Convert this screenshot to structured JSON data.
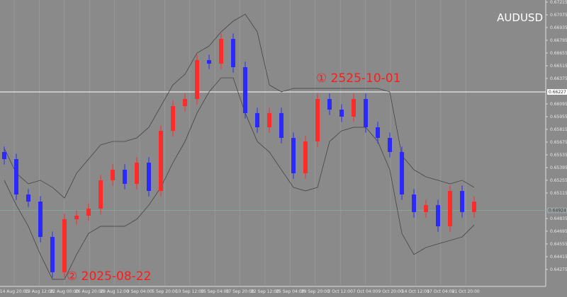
{
  "chart_data": {
    "type": "candlestick",
    "symbol": "AUDUSD",
    "ylim": [
      0.64088,
      0.67238
    ],
    "yticks": [
      0.67215,
      0.67075,
      0.66935,
      0.66795,
      0.66655,
      0.66515,
      0.66375,
      0.66095,
      0.65955,
      0.65815,
      0.65675,
      0.65535,
      0.65395,
      0.65255,
      0.65115,
      0.64835,
      0.64695,
      0.64555,
      0.64415,
      0.64275
    ],
    "x_labels": [
      "14 Aug 20:00",
      "19 Aug 12:00",
      "22 Aug 00:00",
      "26 Aug 20:00",
      "29 Aug 12:00",
      "3 Sep 04:00",
      "5 Sep 20:00",
      "10 Sep 12:00",
      "15 Sep 04:00",
      "17 Sep 20:00",
      "22 Sep 12:00",
      "25 Sep 04:00",
      "29 Sep 20:00",
      "2 Oct 12:00",
      "7 Oct 04:00",
      "9 Oct 20:00",
      "14 Oct 12:00",
      "17 Oct 04:00",
      "21 Oct 20:00"
    ],
    "up_color": "#ff2a2a",
    "down_color": "#2a2aff",
    "open": [
      0.65566,
      0.65488,
      0.65099,
      0.65021,
      0.64632,
      0.64244,
      0.64827,
      0.64866,
      0.64943,
      0.65255,
      0.65371,
      0.65216,
      0.65449,
      0.65138,
      0.65799,
      0.66071,
      0.66149,
      0.66577,
      0.66538,
      0.6681,
      0.66499,
      0.65994,
      0.65838,
      0.65994,
      0.65721,
      0.65332,
      0.65682,
      0.66149,
      0.66032,
      0.65955,
      0.66149,
      0.65838,
      0.65721,
      0.65566,
      0.65099,
      0.64905,
      0.64982,
      0.64749,
      0.65138,
      0.64905
    ],
    "high": [
      0.65626,
      0.65548,
      0.65159,
      0.65081,
      0.64692,
      0.64887,
      0.64926,
      0.65003,
      0.65315,
      0.65431,
      0.65431,
      0.65509,
      0.65509,
      0.65859,
      0.66131,
      0.66209,
      0.66637,
      0.66637,
      0.6687,
      0.6687,
      0.66559,
      0.66054,
      0.66054,
      0.66054,
      0.65781,
      0.65742,
      0.66209,
      0.66209,
      0.66092,
      0.66209,
      0.66209,
      0.65898,
      0.65781,
      0.65626,
      0.65159,
      0.65042,
      0.65042,
      0.65198,
      0.65198,
      0.65081
    ],
    "low": [
      0.65428,
      0.65039,
      0.64961,
      0.64572,
      0.64184,
      0.64184,
      0.64767,
      0.64806,
      0.64883,
      0.65195,
      0.65156,
      0.65156,
      0.65078,
      0.65078,
      0.65739,
      0.66011,
      0.66089,
      0.66478,
      0.66478,
      0.66439,
      0.65934,
      0.65778,
      0.65778,
      0.65661,
      0.65272,
      0.65272,
      0.65622,
      0.65972,
      0.65895,
      0.65895,
      0.65778,
      0.65661,
      0.65506,
      0.65039,
      0.64845,
      0.64845,
      0.64689,
      0.64689,
      0.64845,
      0.64845
    ],
    "close": [
      0.65488,
      0.65099,
      0.65021,
      0.64632,
      0.64244,
      0.64827,
      0.64866,
      0.64943,
      0.65255,
      0.65371,
      0.65216,
      0.65449,
      0.65138,
      0.65799,
      0.66071,
      0.66149,
      0.66577,
      0.66538,
      0.6681,
      0.66499,
      0.65994,
      0.65838,
      0.65994,
      0.65721,
      0.65332,
      0.65682,
      0.66149,
      0.66032,
      0.65955,
      0.66149,
      0.65838,
      0.65721,
      0.65566,
      0.65099,
      0.64905,
      0.64982,
      0.64749,
      0.65138,
      0.64905,
      0.65021
    ],
    "bands": [
      {
        "color": "#3a3a3a",
        "values": [
          0.65605,
          0.65332,
          0.65216,
          0.65255,
          0.65177,
          0.6506,
          0.65332,
          0.65488,
          0.65644,
          0.65682,
          0.65682,
          0.65721,
          0.65838,
          0.66071,
          0.66305,
          0.66421,
          0.66655,
          0.66732,
          0.66888,
          0.67005,
          0.67082,
          0.66888,
          0.66305,
          0.66227,
          0.66266,
          0.66266,
          0.66266,
          0.66266,
          0.66266,
          0.66266,
          0.66266,
          0.66266,
          0.66227,
          0.65527,
          0.65371,
          0.65293,
          0.65255,
          0.65216,
          0.65255,
          0.65177
        ]
      },
      {
        "color": "#3a3a3a",
        "values": [
          0.65255,
          0.64982,
          0.64749,
          0.64438,
          0.64166,
          0.64166,
          0.64438,
          0.64671,
          0.64749,
          0.64749,
          0.64749,
          0.64827,
          0.64982,
          0.65177,
          0.65449,
          0.65682,
          0.65994,
          0.66227,
          0.66382,
          0.66382,
          0.65994,
          0.65682,
          0.65566,
          0.65371,
          0.65177,
          0.65138,
          0.65177,
          0.65682,
          0.65799,
          0.65838,
          0.65838,
          0.65682,
          0.65371,
          0.64671,
          0.64438,
          0.64516,
          0.64555,
          0.64593,
          0.64632,
          0.64765
        ]
      }
    ],
    "hlines": [
      {
        "value": 0.66227,
        "color": "#ffffff"
      },
      {
        "value": 0.64924,
        "color": "#7fa89a"
      }
    ],
    "annotations": [
      {
        "text": "① 2525-10-01",
        "color": "#ff1a1a"
      },
      {
        "text": "② 2025-08-22",
        "color": "#ff1a1a"
      }
    ]
  }
}
